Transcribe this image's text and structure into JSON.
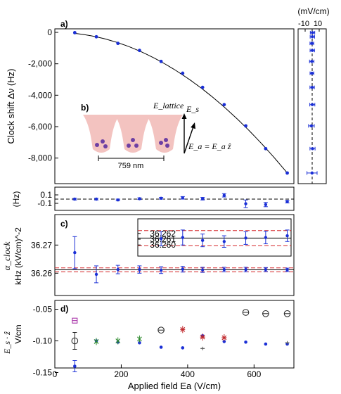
{
  "chart_data": [
    {
      "panel": "a",
      "type": "scatter",
      "panel_label": "a)",
      "ylabel": "Clock shift  Δν  (Hz)",
      "x": [
        60,
        125,
        190,
        255,
        320,
        385,
        445,
        510,
        575,
        635,
        700
      ],
      "values": [
        -20,
        -280,
        -700,
        -1150,
        -1850,
        -2600,
        -3500,
        -4600,
        -5950,
        -7400,
        -8950
      ],
      "fit_curve": true,
      "yticks": [
        "0",
        "-2,000",
        "-4,000",
        "-6,000",
        "-8,000"
      ],
      "ylim": [
        -9400,
        350
      ],
      "xlim": [
        0,
        720
      ],
      "side_panel": {
        "unit_label": "(mV/cm)",
        "ticks": [
          "-10",
          "10"
        ],
        "values": [
          0.5,
          0.3,
          -0.4,
          0.2,
          -0.6,
          -0.3,
          0.0,
          0.2,
          -1.1,
          0.5,
          -0.2
        ],
        "errors": [
          0.7,
          0.7,
          0.6,
          0.7,
          0.7,
          0.6,
          0.7,
          0.8,
          0.9,
          0.8,
          1.6
        ]
      }
    },
    {
      "panel": "residual",
      "type": "scatter",
      "ylabel": "(Hz)",
      "yticks": [
        "0.1",
        "-0.1"
      ],
      "x": [
        60,
        125,
        190,
        255,
        320,
        385,
        445,
        510,
        575,
        635,
        700
      ],
      "values": [
        0.0,
        0.0,
        -0.02,
        0.01,
        0.02,
        0.03,
        0.01,
        0.09,
        -0.11,
        -0.13,
        -0.06
      ],
      "errors": [
        0.02,
        0.02,
        0.02,
        0.02,
        0.02,
        0.03,
        0.03,
        0.04,
        0.09,
        0.05,
        0.03
      ]
    },
    {
      "panel": "c",
      "type": "scatter",
      "panel_label": "c)",
      "ylabel": "kHz (kV/cm)^-2",
      "yticks": [
        "36.27",
        "36.26"
      ],
      "x": [
        60,
        125,
        190,
        255,
        320,
        385,
        445,
        510,
        575,
        635,
        700
      ],
      "values": [
        36.2673,
        36.2596,
        36.2613,
        36.2613,
        36.2611,
        36.2614,
        36.2612,
        36.2613,
        36.2613,
        36.2613,
        36.2612
      ],
      "errors": [
        0.0057,
        0.003,
        0.0015,
        0.0013,
        0.0012,
        0.001,
        0.0009,
        0.0008,
        0.0008,
        0.0007,
        0.0006
      ],
      "mean": 36.2612,
      "band": [
        36.2605,
        36.2619
      ],
      "inset": {
        "yticks": [
          "36.262",
          "36.261",
          "36.260"
        ],
        "values": [
          36.2611,
          36.2613,
          36.2608,
          36.2606,
          36.2612,
          36.2613,
          36.2616
        ],
        "errors": [
          0.0012,
          0.0013,
          0.0011,
          0.001,
          0.0011,
          0.0011,
          0.001
        ]
      }
    },
    {
      "panel": "d",
      "type": "scatter",
      "panel_label": "d)",
      "ylabel": "V/cm",
      "xlabel": "Applied field  Ea  (V/cm)",
      "xticks": [
        "0",
        "200",
        "400",
        "600"
      ],
      "yticks": [
        "-0.05",
        "-0.10",
        "-0.15"
      ],
      "series": [
        {
          "marker": "dot",
          "color": "#1a2fd6",
          "x": [
            60,
            125,
            190,
            255,
            320,
            385,
            445,
            510,
            575,
            635,
            700
          ],
          "values": [
            -0.14,
            -0.1,
            -0.102,
            -0.103,
            -0.11,
            -0.111,
            -0.092,
            -0.101,
            -0.102,
            -0.105,
            -0.105
          ]
        },
        {
          "marker": "circle",
          "color": "#222222",
          "x": [
            60,
            320,
            575,
            635,
            700
          ],
          "values": [
            -0.1,
            -0.083,
            -0.055,
            -0.057,
            -0.057
          ]
        },
        {
          "marker": "square",
          "color": "#a020a0",
          "x": [
            60
          ],
          "values": [
            -0.068
          ]
        },
        {
          "marker": "cross",
          "color": "#2e8b2e",
          "x": [
            125,
            190,
            255
          ],
          "values": [
            -0.101,
            -0.1,
            -0.097
          ]
        },
        {
          "marker": "star",
          "color": "#c0282c",
          "x": [
            385,
            445,
            510
          ],
          "values": [
            -0.082,
            -0.094,
            -0.095
          ]
        },
        {
          "marker": "plus",
          "color": "#555555",
          "x": [
            445,
            700
          ],
          "values": [
            -0.112,
            -0.103
          ]
        }
      ]
    }
  ],
  "figure_text": {
    "label_b": "b)",
    "scale_bar": "759 nm",
    "e_lattice": "E_lattice",
    "e_s": "E_s",
    "e_a": "E_a = E_a ẑ",
    "alpha": "α_clock",
    "es_dot_z": "E_s · ẑ"
  },
  "colors": {
    "data": "#1a2fd6",
    "band": "#d62728",
    "well": "#f3c3c0",
    "atom": "#6d3fa3"
  }
}
